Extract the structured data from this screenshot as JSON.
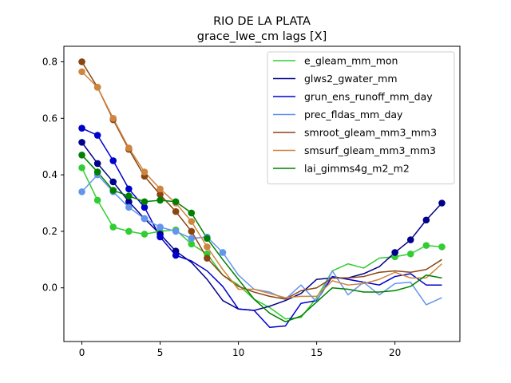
{
  "chart_data": {
    "type": "line",
    "title": "RIO DE LA PLATA",
    "subtitle": "grace_lwe_cm lags [X]",
    "xlabel": "",
    "ylabel": "",
    "xlim": [
      -1.15,
      24.15
    ],
    "ylim": [
      -0.19,
      0.855
    ],
    "xticks": [
      0,
      5,
      10,
      15,
      20
    ],
    "yticks": [
      0.0,
      0.2,
      0.4,
      0.6,
      0.8
    ],
    "ytick_labels": [
      "0.0",
      "0.2",
      "0.4",
      "0.6",
      "0.8"
    ],
    "grid": false,
    "legend_position": "upper right",
    "x": [
      0,
      1,
      2,
      3,
      4,
      5,
      6,
      7,
      8,
      9,
      10,
      11,
      12,
      13,
      14,
      15,
      16,
      17,
      18,
      19,
      20,
      21,
      22,
      23
    ],
    "series": [
      {
        "name": "e_gleam_mm_mon",
        "color": "#32cd32",
        "values": [
          0.425,
          0.31,
          0.215,
          0.2,
          0.19,
          0.2,
          0.205,
          0.155,
          0.12,
          0.045,
          0.01,
          -0.04,
          -0.07,
          -0.11,
          -0.105,
          -0.035,
          0.06,
          0.085,
          0.07,
          0.105,
          0.11,
          0.12,
          0.15,
          0.145
        ],
        "markers": [
          0,
          1,
          2,
          3,
          4,
          5,
          6,
          7,
          8,
          20,
          21,
          22,
          23
        ]
      },
      {
        "name": "glws2_gwater_mm",
        "color": "#00008b",
        "values": [
          0.515,
          0.44,
          0.375,
          0.305,
          0.245,
          0.19,
          0.13,
          0.09,
          0.03,
          -0.045,
          -0.075,
          -0.08,
          -0.065,
          -0.045,
          -0.02,
          0.03,
          0.035,
          0.035,
          0.05,
          0.075,
          0.125,
          0.17,
          0.24,
          0.3
        ],
        "markers": [
          0,
          1,
          2,
          3,
          4,
          5,
          6,
          20,
          21,
          22,
          23
        ]
      },
      {
        "name": "grun_ens_runoff_mm_day",
        "color": "#0000cd",
        "values": [
          0.565,
          0.54,
          0.45,
          0.35,
          0.285,
          0.18,
          0.115,
          0.095,
          0.06,
          0.005,
          -0.075,
          -0.08,
          -0.14,
          -0.135,
          -0.055,
          -0.045,
          0.04,
          0.03,
          0.02,
          0.01,
          0.04,
          0.05,
          0.01,
          0.01
        ],
        "markers": [
          0,
          1,
          2,
          3,
          4,
          5,
          6
        ]
      },
      {
        "name": "prec_fldas_mm_day",
        "color": "#6495ed",
        "values": [
          0.34,
          0.4,
          0.34,
          0.285,
          0.245,
          0.215,
          0.2,
          0.175,
          0.18,
          0.125,
          0.045,
          -0.005,
          -0.015,
          -0.04,
          0.01,
          -0.05,
          0.06,
          -0.025,
          0.02,
          -0.025,
          0.015,
          0.02,
          -0.06,
          -0.035
        ],
        "markers": [
          0,
          1,
          2,
          3,
          4,
          5,
          6,
          7,
          8,
          9
        ]
      },
      {
        "name": "smroot_gleam_mm3_mm3",
        "color": "#8b4513",
        "values": [
          0.8,
          0.71,
          0.595,
          0.49,
          0.395,
          0.33,
          0.27,
          0.2,
          0.105,
          0.045,
          0.005,
          -0.015,
          -0.03,
          -0.04,
          -0.01,
          0.0,
          0.035,
          0.035,
          0.04,
          0.055,
          0.06,
          0.055,
          0.065,
          0.1
        ],
        "markers": [
          0,
          1,
          2,
          3,
          4,
          5,
          6,
          7,
          8
        ]
      },
      {
        "name": "smsurf_gleam_mm3_mm3",
        "color": "#cd853f",
        "values": [
          0.765,
          0.71,
          0.6,
          0.495,
          0.41,
          0.35,
          0.3,
          0.235,
          0.145,
          0.065,
          -0.005,
          -0.005,
          -0.02,
          -0.035,
          -0.03,
          -0.03,
          0.025,
          0.01,
          0.015,
          0.03,
          0.055,
          0.035,
          0.035,
          0.085
        ],
        "markers": [
          0,
          1,
          2,
          3,
          4,
          5,
          6,
          7,
          8
        ]
      },
      {
        "name": "lai_gimms4g_m2_m2",
        "color": "#008000",
        "values": [
          0.47,
          0.41,
          0.345,
          0.325,
          0.305,
          0.31,
          0.305,
          0.265,
          0.175,
          0.1,
          0.03,
          -0.04,
          -0.09,
          -0.12,
          -0.1,
          -0.05,
          0.0,
          -0.005,
          -0.015,
          -0.015,
          -0.01,
          0.005,
          0.045,
          0.035
        ],
        "markers": [
          0,
          1,
          2,
          3,
          4,
          5,
          6,
          7,
          8
        ]
      }
    ]
  }
}
